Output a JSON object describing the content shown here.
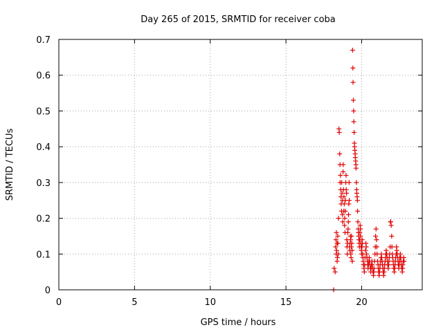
{
  "chart_data": {
    "type": "scatter",
    "title": "Day 265 of 2015, SRMTID for receiver coba",
    "xlabel": "GPS time / hours",
    "ylabel": "SRMTID / TECUs",
    "xlim": [
      0,
      24
    ],
    "ylim": [
      0,
      0.7
    ],
    "xticks": [
      0,
      5,
      10,
      15,
      20
    ],
    "xtick_labels": [
      "0",
      "5",
      "10",
      "15",
      "20"
    ],
    "yticks": [
      0,
      0.1,
      0.2,
      0.3,
      0.4,
      0.5,
      0.6,
      0.7
    ],
    "ytick_labels": [
      "0",
      "0.1",
      "0.2",
      "0.3",
      "0.4",
      "0.5",
      "0.6",
      "0.7"
    ],
    "grid": true,
    "marker": "+",
    "marker_color": "#e00000",
    "series": [
      {
        "name": "SRMTID",
        "x": [
          18.15,
          18.18,
          18.25,
          18.28,
          18.3,
          18.32,
          18.33,
          18.35,
          18.37,
          18.38,
          18.4,
          18.42,
          18.43,
          18.45,
          18.47,
          18.5,
          18.52,
          18.55,
          18.57,
          18.58,
          18.6,
          18.62,
          18.63,
          18.65,
          18.67,
          18.68,
          18.7,
          18.72,
          18.73,
          18.75,
          18.77,
          18.78,
          18.8,
          18.82,
          18.83,
          18.85,
          18.87,
          18.88,
          18.9,
          18.92,
          18.93,
          18.95,
          18.97,
          18.98,
          19.0,
          19.02,
          19.03,
          19.05,
          19.07,
          19.08,
          19.1,
          19.12,
          19.13,
          19.15,
          19.17,
          19.18,
          19.2,
          19.22,
          19.23,
          19.25,
          19.27,
          19.28,
          19.3,
          19.32,
          19.33,
          19.35,
          19.37,
          19.38,
          19.4,
          19.42,
          19.43,
          19.45,
          19.47,
          19.48,
          19.5,
          19.52,
          19.53,
          19.55,
          19.57,
          19.58,
          19.6,
          19.62,
          19.63,
          19.65,
          19.67,
          19.68,
          19.7,
          19.72,
          19.73,
          19.75,
          19.77,
          19.78,
          19.8,
          19.82,
          19.83,
          19.85,
          19.87,
          19.88,
          19.9,
          19.92,
          19.93,
          19.95,
          19.97,
          19.98,
          20.0,
          20.02,
          20.03,
          20.05,
          20.07,
          20.08,
          20.1,
          20.12,
          20.15,
          20.18,
          20.2,
          20.22,
          20.25,
          20.28,
          20.3,
          20.32,
          20.35,
          20.38,
          20.4,
          20.42,
          20.45,
          20.48,
          20.5,
          20.52,
          20.55,
          20.58,
          20.6,
          20.62,
          20.65,
          20.68,
          20.7,
          20.72,
          20.75,
          20.78,
          20.8,
          20.82,
          20.85,
          20.88,
          20.9,
          20.92,
          20.95,
          20.98,
          21.0,
          21.02,
          21.05,
          21.08,
          21.1,
          21.12,
          21.15,
          21.18,
          21.2,
          21.22,
          21.25,
          21.28,
          21.3,
          21.32,
          21.35,
          21.38,
          21.4,
          21.42,
          21.45,
          21.48,
          21.5,
          21.52,
          21.55,
          21.58,
          21.6,
          21.62,
          21.65,
          21.68,
          21.7,
          21.72,
          21.75,
          21.78,
          21.8,
          21.82,
          21.85,
          21.88,
          21.9,
          21.92,
          21.95,
          21.98,
          22.0,
          22.02,
          22.05,
          22.08,
          22.1,
          22.12,
          22.15,
          22.18,
          22.2,
          22.22,
          22.25,
          22.28,
          22.3,
          22.32,
          22.35,
          22.38,
          22.4,
          22.42,
          22.45,
          22.48,
          22.5,
          22.52,
          22.55,
          22.58,
          22.6,
          22.62,
          22.65,
          22.68,
          22.7,
          22.72,
          22.75,
          22.78,
          22.8
        ],
        "y": [
          0.0,
          0.06,
          0.05,
          0.12,
          0.14,
          0.1,
          0.16,
          0.11,
          0.13,
          0.08,
          0.09,
          0.15,
          0.13,
          0.1,
          0.2,
          0.45,
          0.44,
          0.38,
          0.35,
          0.3,
          0.32,
          0.28,
          0.26,
          0.24,
          0.22,
          0.3,
          0.27,
          0.25,
          0.21,
          0.19,
          0.33,
          0.35,
          0.28,
          0.22,
          0.26,
          0.24,
          0.18,
          0.2,
          0.16,
          0.22,
          0.25,
          0.3,
          0.32,
          0.28,
          0.27,
          0.14,
          0.12,
          0.1,
          0.13,
          0.16,
          0.17,
          0.19,
          0.21,
          0.24,
          0.3,
          0.25,
          0.12,
          0.11,
          0.13,
          0.15,
          0.14,
          0.1,
          0.09,
          0.12,
          0.15,
          0.13,
          0.11,
          0.08,
          0.67,
          0.62,
          0.58,
          0.53,
          0.5,
          0.47,
          0.44,
          0.41,
          0.4,
          0.39,
          0.38,
          0.37,
          0.36,
          0.35,
          0.34,
          0.3,
          0.28,
          0.27,
          0.26,
          0.25,
          0.22,
          0.19,
          0.17,
          0.16,
          0.15,
          0.14,
          0.13,
          0.12,
          0.14,
          0.16,
          0.18,
          0.17,
          0.15,
          0.13,
          0.12,
          0.11,
          0.1,
          0.12,
          0.14,
          0.13,
          0.1,
          0.09,
          0.08,
          0.07,
          0.06,
          0.05,
          0.07,
          0.09,
          0.11,
          0.13,
          0.12,
          0.1,
          0.09,
          0.08,
          0.07,
          0.06,
          0.07,
          0.08,
          0.09,
          0.08,
          0.07,
          0.06,
          0.05,
          0.06,
          0.07,
          0.08,
          0.07,
          0.06,
          0.05,
          0.04,
          0.05,
          0.06,
          0.08,
          0.1,
          0.12,
          0.15,
          0.17,
          0.14,
          0.12,
          0.1,
          0.08,
          0.07,
          0.06,
          0.05,
          0.04,
          0.05,
          0.06,
          0.07,
          0.08,
          0.09,
          0.1,
          0.09,
          0.08,
          0.07,
          0.06,
          0.05,
          0.04,
          0.05,
          0.06,
          0.07,
          0.08,
          0.09,
          0.1,
          0.11,
          0.1,
          0.09,
          0.08,
          0.07,
          0.06,
          0.07,
          0.08,
          0.09,
          0.1,
          0.12,
          0.19,
          0.19,
          0.18,
          0.15,
          0.12,
          0.1,
          0.09,
          0.08,
          0.07,
          0.06,
          0.05,
          0.06,
          0.07,
          0.08,
          0.09,
          0.1,
          0.12,
          0.11,
          0.1,
          0.09,
          0.08,
          0.07,
          0.06,
          0.07,
          0.08,
          0.09,
          0.1,
          0.09,
          0.08,
          0.07,
          0.06,
          0.05,
          0.06,
          0.07,
          0.08,
          0.09,
          0.08
        ]
      }
    ]
  }
}
